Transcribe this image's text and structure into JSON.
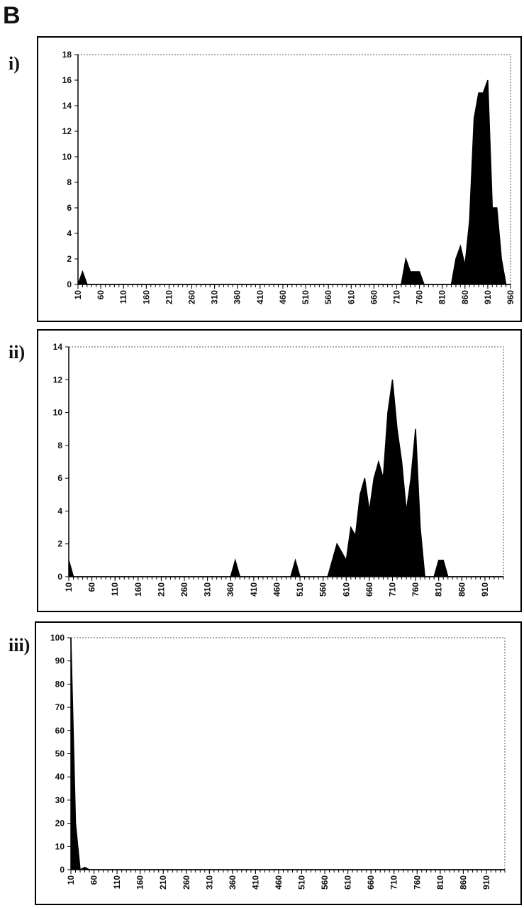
{
  "panel_label": "B",
  "chart_data": [
    {
      "type": "area",
      "title": "i)",
      "color": "#000000",
      "x": [
        10,
        20,
        30,
        40,
        50,
        60,
        70,
        80,
        90,
        100,
        110,
        120,
        130,
        140,
        150,
        160,
        170,
        180,
        190,
        200,
        210,
        220,
        230,
        240,
        250,
        260,
        270,
        280,
        290,
        300,
        310,
        320,
        330,
        340,
        350,
        360,
        370,
        380,
        390,
        400,
        410,
        420,
        430,
        440,
        450,
        460,
        470,
        480,
        490,
        500,
        510,
        520,
        530,
        540,
        550,
        560,
        570,
        580,
        590,
        600,
        610,
        620,
        630,
        640,
        650,
        660,
        670,
        680,
        690,
        700,
        710,
        720,
        730,
        740,
        750,
        760,
        770,
        780,
        790,
        800,
        810,
        820,
        830,
        840,
        850,
        860,
        870,
        880,
        890,
        900,
        910,
        920,
        930,
        940,
        950,
        960
      ],
      "values": [
        0,
        1,
        0,
        0,
        0,
        0,
        0,
        0,
        0,
        0,
        0,
        0,
        0,
        0,
        0,
        0,
        0,
        0,
        0,
        0,
        0,
        0,
        0,
        0,
        0,
        0,
        0,
        0,
        0,
        0,
        0,
        0,
        0,
        0,
        0,
        0,
        0,
        0,
        0,
        0,
        0,
        0,
        0,
        0,
        0,
        0,
        0,
        0,
        0,
        0,
        0,
        0,
        0,
        0,
        0,
        0,
        0,
        0,
        0,
        0,
        0,
        0,
        0,
        0,
        0,
        0,
        0,
        0,
        0,
        0,
        0,
        0,
        2,
        1,
        1,
        1,
        0,
        0,
        0,
        0,
        0,
        0,
        0,
        2,
        3,
        1.5,
        5,
        13,
        15,
        15,
        16,
        6,
        6,
        2,
        0,
        0
      ],
      "xlim": [
        10,
        960
      ],
      "xticks": [
        10,
        60,
        110,
        160,
        210,
        260,
        310,
        360,
        410,
        460,
        510,
        560,
        610,
        660,
        710,
        760,
        810,
        860,
        910,
        960
      ],
      "ylim": [
        0,
        18
      ],
      "yticks": [
        0,
        2,
        4,
        6,
        8,
        10,
        12,
        14,
        16,
        18
      ],
      "grid": false
    },
    {
      "type": "area",
      "title": "ii)",
      "color": "#000000",
      "x": [
        10,
        20,
        30,
        40,
        50,
        60,
        70,
        80,
        90,
        100,
        110,
        120,
        130,
        140,
        150,
        160,
        170,
        180,
        190,
        200,
        210,
        220,
        230,
        240,
        250,
        260,
        270,
        280,
        290,
        300,
        310,
        320,
        330,
        340,
        350,
        360,
        370,
        380,
        390,
        400,
        410,
        420,
        430,
        440,
        450,
        460,
        470,
        480,
        490,
        500,
        510,
        520,
        530,
        540,
        550,
        560,
        570,
        580,
        590,
        600,
        610,
        620,
        630,
        640,
        650,
        660,
        670,
        680,
        690,
        700,
        710,
        720,
        730,
        740,
        750,
        760,
        770,
        780,
        790,
        800,
        810,
        820,
        830,
        840,
        850,
        860,
        870,
        880,
        890,
        900,
        910,
        920,
        930,
        940,
        950
      ],
      "values": [
        1,
        0,
        0,
        0,
        0,
        0,
        0,
        0,
        0,
        0,
        0,
        0,
        0,
        0,
        0,
        0,
        0,
        0,
        0,
        0,
        0,
        0,
        0,
        0,
        0,
        0,
        0,
        0,
        0,
        0,
        0,
        0,
        0,
        0,
        0,
        0,
        1,
        0,
        0,
        0,
        0,
        0,
        0,
        0,
        0,
        0,
        0,
        0,
        0,
        1,
        0,
        0,
        0,
        0,
        0,
        0,
        0,
        1,
        2,
        1.5,
        1,
        3,
        2.5,
        5,
        6,
        4,
        6,
        7,
        6,
        10,
        12,
        9,
        7,
        4,
        6,
        9,
        3,
        0,
        0,
        0,
        1,
        1,
        0,
        0,
        0,
        0,
        0,
        0,
        0,
        0,
        0,
        0,
        0,
        0,
        0
      ],
      "xlim": [
        10,
        950
      ],
      "xticks": [
        10,
        60,
        110,
        160,
        210,
        260,
        310,
        360,
        410,
        460,
        510,
        560,
        610,
        660,
        710,
        760,
        810,
        860,
        910
      ],
      "ylim": [
        0,
        14
      ],
      "yticks": [
        0,
        2,
        4,
        6,
        8,
        10,
        12,
        14
      ],
      "grid": false
    },
    {
      "type": "area",
      "title": "iii)",
      "color": "#000000",
      "x": [
        10,
        20,
        30,
        40,
        50,
        60,
        70,
        80,
        90,
        100,
        110,
        120,
        130,
        140,
        150,
        160,
        170,
        180,
        190,
        200,
        210,
        220,
        230,
        240,
        250,
        260,
        270,
        280,
        290,
        300,
        310,
        320,
        330,
        340,
        350,
        360,
        370,
        380,
        390,
        400,
        410,
        420,
        430,
        440,
        450,
        460,
        470,
        480,
        490,
        500,
        510,
        520,
        530,
        540,
        550,
        560,
        570,
        580,
        590,
        600,
        610,
        620,
        630,
        640,
        650,
        660,
        670,
        680,
        690,
        700,
        710,
        720,
        730,
        740,
        750,
        760,
        770,
        780,
        790,
        800,
        810,
        820,
        830,
        840,
        850,
        860,
        870,
        880,
        890,
        900,
        910,
        920,
        930,
        940,
        950
      ],
      "values": [
        100,
        20,
        0,
        1,
        0,
        0,
        0,
        0,
        0,
        0,
        0,
        0,
        0,
        0,
        0,
        0,
        0,
        0,
        0,
        0,
        0,
        0,
        0,
        0,
        0,
        0,
        0,
        0,
        0,
        0,
        0,
        0,
        0,
        0,
        0,
        0,
        0,
        0,
        0,
        0,
        0,
        0,
        0,
        0,
        0,
        0,
        0,
        0,
        0,
        0,
        0,
        0,
        0,
        0,
        0,
        0,
        0,
        0,
        0,
        0,
        0,
        0,
        0,
        0,
        0,
        0,
        0,
        0,
        0,
        0,
        0,
        0,
        0,
        0,
        0,
        0,
        0,
        0,
        0,
        0,
        0,
        0,
        0,
        0,
        0,
        0,
        0,
        0,
        0,
        0,
        0,
        0,
        0,
        0,
        0
      ],
      "xlim": [
        10,
        950
      ],
      "xticks": [
        10,
        60,
        110,
        160,
        210,
        260,
        310,
        360,
        410,
        460,
        510,
        560,
        610,
        660,
        710,
        760,
        810,
        860,
        910
      ],
      "ylim": [
        0,
        100
      ],
      "yticks": [
        0,
        10,
        20,
        30,
        40,
        50,
        60,
        70,
        80,
        90,
        100
      ],
      "grid": false
    }
  ]
}
